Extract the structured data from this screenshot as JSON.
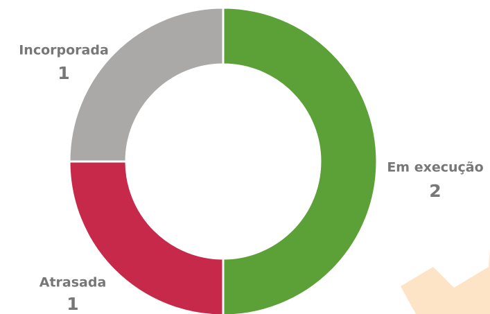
{
  "chart_data": {
    "type": "donut",
    "categories": [
      "Em execução",
      "Atrasada",
      "Incorporada"
    ],
    "values": [
      2,
      1,
      1
    ],
    "colors": [
      "#5ca138",
      "#c7294b",
      "#aaa9a8"
    ]
  }
}
